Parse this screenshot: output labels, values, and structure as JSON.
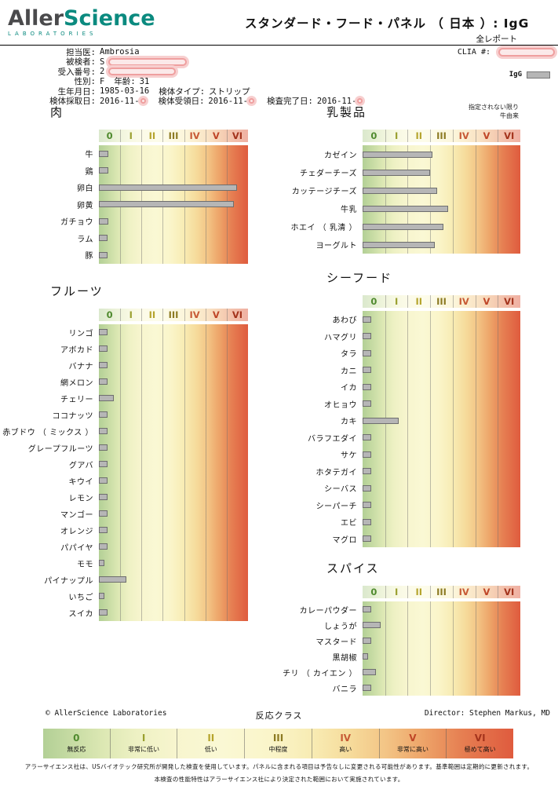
{
  "header": {
    "logo_part1": "Aller",
    "logo_part2": "Science",
    "logo_sub": "LABORATORIES",
    "title": "スタンダード・フード・パネル （ 日本 ）: IgG",
    "subtitle": "全レポート",
    "clia_label": "CLIA #:",
    "igg_legend_label": "IgG"
  },
  "patient": {
    "physician_label": "担当医:",
    "physician_value": "Ambrosia",
    "subject_label": "被検者:",
    "subject_value": "S",
    "accession_label": "受入番号:",
    "accession_value": "2",
    "sex_label": "性別:",
    "sex_value": "F",
    "age_label": "年齢:",
    "age_value": "31",
    "dob_label": "生年月日:",
    "dob_value": "1985-03-16",
    "sample_type_label": "検体タイプ:",
    "sample_type_value": "ストリップ",
    "collected_label": "検体採取日:",
    "collected_value": "2016-11-",
    "received_label": "検体受領日:",
    "received_value": "2016-11-",
    "completed_label": "検査完了日:",
    "completed_value": "2016-11-"
  },
  "reaction_classes": [
    {
      "numeral": "0",
      "label": "無反応",
      "color": "#4f8a2e"
    },
    {
      "numeral": "I",
      "label": "非常に低い",
      "color": "#9aa02f"
    },
    {
      "numeral": "II",
      "label": "低い",
      "color": "#b5a42c"
    },
    {
      "numeral": "III",
      "label": "中程度",
      "color": "#8c7a22"
    },
    {
      "numeral": "IV",
      "label": "高い",
      "color": "#c75a35"
    },
    {
      "numeral": "V",
      "label": "非常に高い",
      "color": "#bf4527"
    },
    {
      "numeral": "VI",
      "label": "極めて高い",
      "color": "#a3331c"
    }
  ],
  "chart_data": [
    {
      "type": "bar",
      "title": "肉",
      "xlabel": "反応クラス",
      "xlim": [
        0,
        7
      ],
      "x_classes": [
        "0",
        "I",
        "II",
        "III",
        "IV",
        "V",
        "VI"
      ],
      "categories": [
        "牛",
        "鶏",
        "卵白",
        "卵黄",
        "ガチョウ",
        "ラム",
        "豚"
      ],
      "values": [
        0.45,
        0.45,
        6.5,
        6.35,
        0.45,
        0.4,
        0.4
      ]
    },
    {
      "type": "bar",
      "title": "乳製品",
      "note": [
        "指定されない限り",
        "牛由来"
      ],
      "xlabel": "反応クラス",
      "xlim": [
        0,
        7
      ],
      "x_classes": [
        "0",
        "I",
        "II",
        "III",
        "IV",
        "V",
        "VI"
      ],
      "categories": [
        "カゼイン",
        "チェダーチーズ",
        "カッテージチーズ",
        "牛乳",
        "ホエイ （ 乳清 ）",
        "ヨーグルト"
      ],
      "values": [
        3.1,
        3.0,
        3.3,
        3.8,
        3.6,
        3.2
      ]
    },
    {
      "type": "bar",
      "title": "フルーツ",
      "xlabel": "反応クラス",
      "xlim": [
        0,
        7
      ],
      "x_classes": [
        "0",
        "I",
        "II",
        "III",
        "IV",
        "V",
        "VI"
      ],
      "categories": [
        "リンゴ",
        "アボカド",
        "バナナ",
        "網メロン",
        "チェリー",
        "ココナッツ",
        "赤ブドウ （ ミックス ）",
        "グレープフルーツ",
        "グアバ",
        "キウイ",
        "レモン",
        "マンゴー",
        "オレンジ",
        "パパイヤ",
        "モモ",
        "パイナップル",
        "いちご",
        "スイカ"
      ],
      "values": [
        0.4,
        0.4,
        0.4,
        0.4,
        0.7,
        0.4,
        0.4,
        0.4,
        0.4,
        0.4,
        0.4,
        0.4,
        0.4,
        0.4,
        0.25,
        1.3,
        0.25,
        0.4
      ]
    },
    {
      "type": "bar",
      "title": "シーフード",
      "xlabel": "反応クラス",
      "xlim": [
        0,
        7
      ],
      "x_classes": [
        "0",
        "I",
        "II",
        "III",
        "IV",
        "V",
        "VI"
      ],
      "categories": [
        "あわび",
        "ハマグリ",
        "タラ",
        "カニ",
        "イカ",
        "オヒョウ",
        "カキ",
        "バラフエダイ",
        "サケ",
        "ホタテガイ",
        "シーバス",
        "シーパーチ",
        "エビ",
        "マグロ"
      ],
      "values": [
        0.4,
        0.4,
        0.4,
        0.4,
        0.4,
        0.4,
        1.6,
        0.4,
        0.4,
        0.4,
        0.4,
        0.4,
        0.4,
        0.4
      ]
    },
    {
      "type": "bar",
      "title": "スパイス",
      "xlabel": "反応クラス",
      "xlim": [
        0,
        7
      ],
      "x_classes": [
        "0",
        "I",
        "II",
        "III",
        "IV",
        "V",
        "VI"
      ],
      "categories": [
        "カレーパウダー",
        "しょうが",
        "マスタード",
        "黒胡椒",
        "チリ （ カイエン ）",
        "バニラ"
      ],
      "values": [
        0.4,
        0.8,
        0.4,
        0.25,
        0.6,
        0.4
      ]
    }
  ],
  "footer": {
    "copyright": "© AllerScience Laboratories",
    "legend_title": "反応クラス",
    "director": "Director: Stephen Markus, MD",
    "disclaimer_line1": "アラーサイエンス社は、USバイオテック研究所が開発した検査を使用しています。パネルに含まれる項目は予告なしに変更される可能性があります。基準範囲は定期的に更新されます。",
    "disclaimer_line2": "本検査の性能特性はアラーサイエンス社により決定された範囲において実施されています。"
  },
  "colors": {
    "brand_teal": "#0b8a7f",
    "bar_gray": "#b6b6b6",
    "redaction_pink": "#ef9f9f",
    "gradient_green": "#b3d096",
    "gradient_yellow": "#faf8d4",
    "gradient_red": "#df5b3e"
  }
}
